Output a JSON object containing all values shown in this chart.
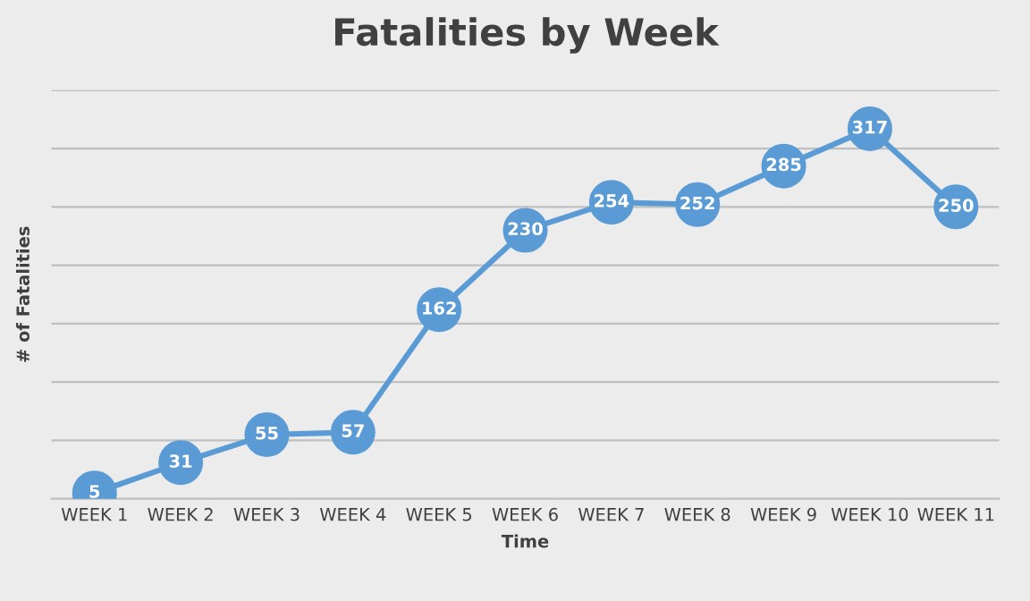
{
  "chart_data": {
    "type": "line",
    "title": "Fatalities by Week",
    "xlabel": "Time",
    "ylabel": "# of Fatalities",
    "categories": [
      "WEEK 1",
      "WEEK 2",
      "WEEK 3",
      "WEEK 4",
      "WEEK 5",
      "WEEK 6",
      "WEEK 7",
      "WEEK 8",
      "WEEK 9",
      "WEEK 10",
      "WEEK 11"
    ],
    "series": [
      {
        "color": "#5b9bd5",
        "values": [
          5,
          31,
          55,
          57,
          162,
          230,
          254,
          252,
          285,
          317,
          250
        ]
      }
    ],
    "ylim": [
      0,
      350
    ],
    "yticks": [
      {
        "value": 0,
        "label": null
      },
      {
        "value": 50,
        "label": null
      },
      {
        "value": 100,
        "label": null
      },
      {
        "value": 150,
        "label": null
      },
      {
        "value": 200,
        "label": null
      },
      {
        "value": 250,
        "label": null
      },
      {
        "value": 300,
        "label": null
      },
      {
        "value": 350,
        "label": null
      }
    ],
    "tick_labels": "x",
    "grid": "y",
    "marker": "circle",
    "line_style": "solid",
    "data_labels": true,
    "legend": false
  }
}
